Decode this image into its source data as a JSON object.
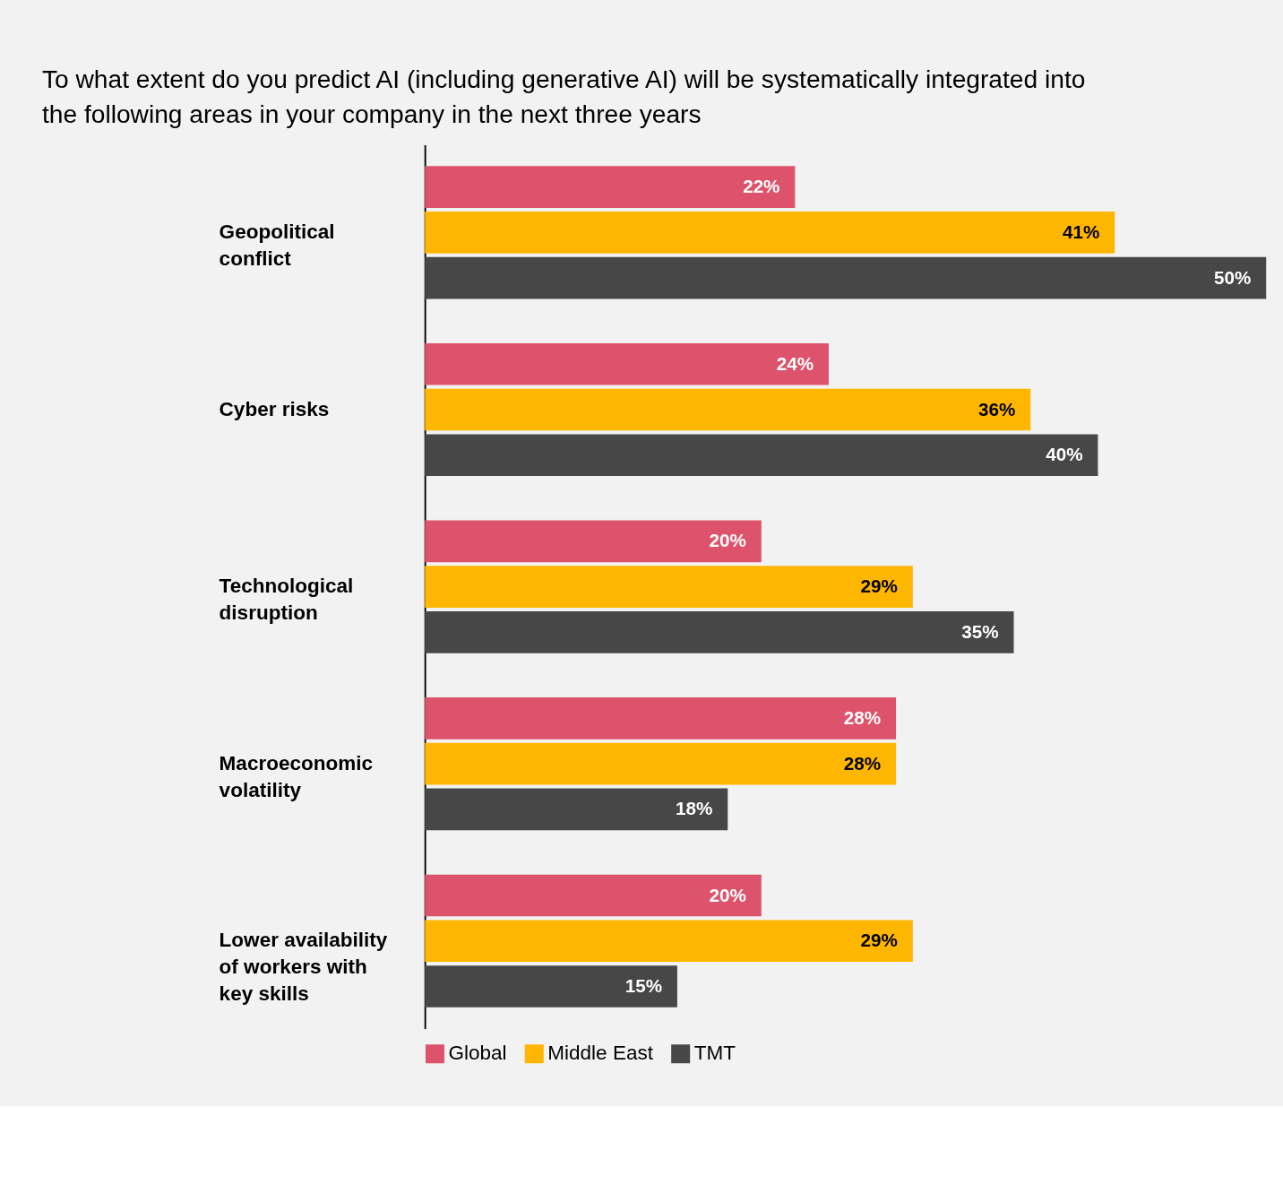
{
  "chart_data": {
    "type": "bar",
    "orientation": "horizontal",
    "title": "To what extent do you predict AI (including generative AI) will be systematically integrated into the following areas in your company in the next three years",
    "categories": [
      "Geopolitical conflict",
      "Cyber risks",
      "Technological disruption",
      "Macroeconomic volatility",
      "Lower availability of workers with key skills"
    ],
    "series": [
      {
        "name": "Global",
        "color": "#dd536b",
        "values": [
          22,
          24,
          20,
          28,
          20
        ],
        "value_labels": [
          "22%",
          "24%",
          "20%",
          "28%",
          "20%"
        ]
      },
      {
        "name": "Middle East",
        "color": "#ffb600",
        "values": [
          41,
          36,
          29,
          28,
          29
        ],
        "value_labels": [
          "41%",
          "36%",
          "29%",
          "28%",
          "29%"
        ]
      },
      {
        "name": "TMT",
        "color": "#474747",
        "values": [
          50,
          40,
          35,
          18,
          15
        ],
        "value_labels": [
          "50%",
          "40%",
          "35%",
          "18%",
          "15%"
        ]
      }
    ],
    "legend": "bottom",
    "grid": false,
    "tick_labels": "y"
  }
}
